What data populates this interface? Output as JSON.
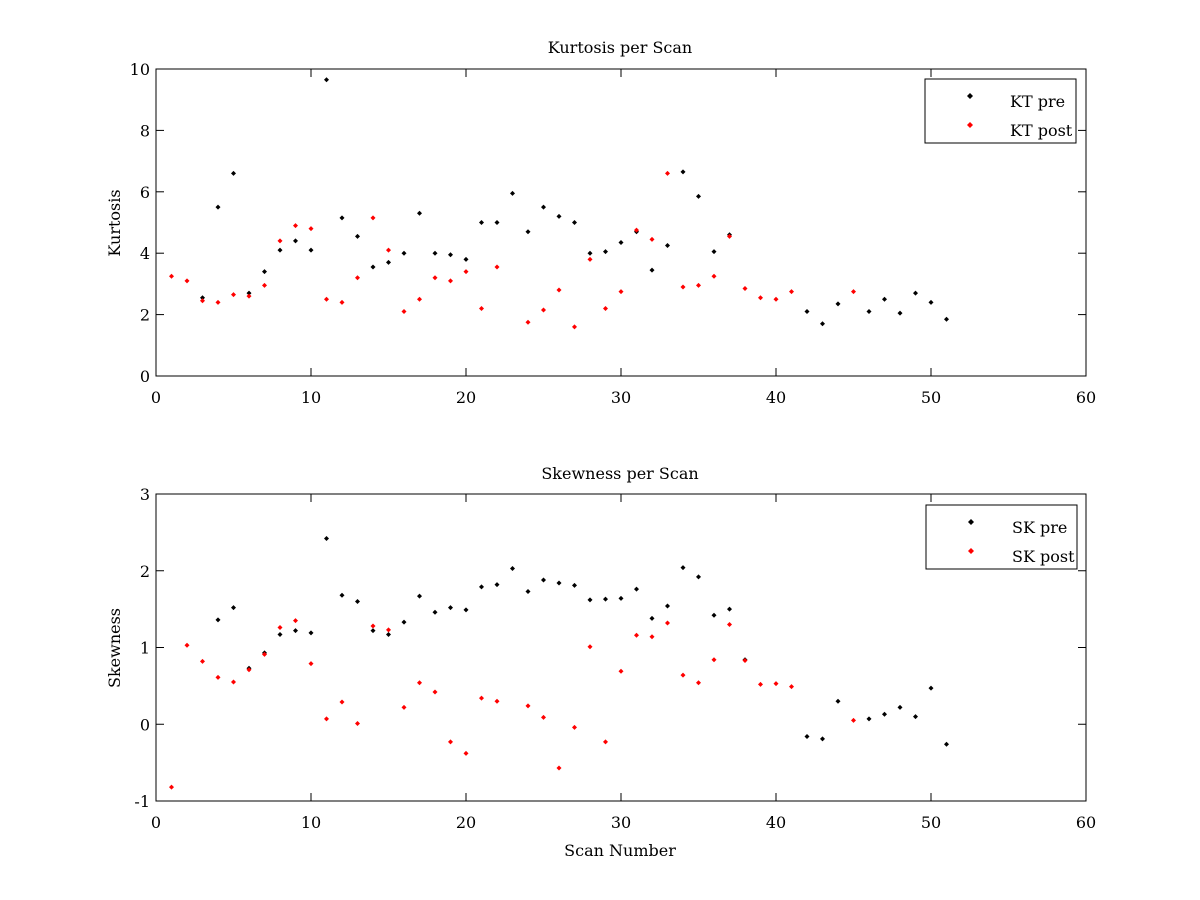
{
  "chart_data": [
    {
      "type": "scatter",
      "title": "Kurtosis per Scan",
      "xlabel": "",
      "ylabel": "Kurtosis",
      "xlim": [
        0,
        60
      ],
      "ylim": [
        0,
        10
      ],
      "xticks": [
        0,
        10,
        20,
        30,
        40,
        50,
        60
      ],
      "yticks": [
        0,
        2,
        4,
        6,
        8,
        10
      ],
      "grid": false,
      "legend_position": "top-right",
      "series": [
        {
          "name": "KT pre",
          "color": "#000000",
          "marker": "diamond",
          "points": [
            [
              3,
              2.55
            ],
            [
              4,
              5.5
            ],
            [
              5,
              6.6
            ],
            [
              6,
              2.7
            ],
            [
              7,
              3.4
            ],
            [
              8,
              4.1
            ],
            [
              9,
              4.4
            ],
            [
              10,
              4.1
            ],
            [
              11,
              9.65
            ],
            [
              12,
              5.15
            ],
            [
              13,
              4.55
            ],
            [
              14,
              3.55
            ],
            [
              15,
              3.7
            ],
            [
              16,
              4.0
            ],
            [
              17,
              5.3
            ],
            [
              18,
              4.0
            ],
            [
              19,
              3.95
            ],
            [
              20,
              3.8
            ],
            [
              21,
              5.0
            ],
            [
              22,
              5.0
            ],
            [
              23,
              5.95
            ],
            [
              24,
              4.7
            ],
            [
              25,
              5.5
            ],
            [
              26,
              5.2
            ],
            [
              27,
              5.0
            ],
            [
              28,
              4.0
            ],
            [
              29,
              4.05
            ],
            [
              30,
              4.35
            ],
            [
              31,
              4.7
            ],
            [
              32,
              3.45
            ],
            [
              33,
              4.25
            ],
            [
              34,
              6.65
            ],
            [
              35,
              5.85
            ],
            [
              36,
              4.05
            ],
            [
              37,
              4.6
            ],
            [
              42,
              2.1
            ],
            [
              43,
              1.7
            ],
            [
              44,
              2.35
            ],
            [
              46,
              2.1
            ],
            [
              47,
              2.5
            ],
            [
              48,
              2.05
            ],
            [
              49,
              2.7
            ],
            [
              50,
              2.4
            ],
            [
              51,
              1.85
            ]
          ]
        },
        {
          "name": "KT post",
          "color": "#ff0000",
          "marker": "diamond",
          "points": [
            [
              1,
              3.25
            ],
            [
              2,
              3.1
            ],
            [
              3,
              2.45
            ],
            [
              4,
              2.4
            ],
            [
              5,
              2.65
            ],
            [
              6,
              2.6
            ],
            [
              7,
              2.95
            ],
            [
              8,
              4.4
            ],
            [
              9,
              4.9
            ],
            [
              10,
              4.8
            ],
            [
              11,
              2.5
            ],
            [
              12,
              2.4
            ],
            [
              13,
              3.2
            ],
            [
              14,
              5.15
            ],
            [
              15,
              4.1
            ],
            [
              16,
              2.1
            ],
            [
              17,
              2.5
            ],
            [
              18,
              3.2
            ],
            [
              19,
              3.1
            ],
            [
              20,
              3.4
            ],
            [
              21,
              2.2
            ],
            [
              22,
              3.55
            ],
            [
              24,
              1.75
            ],
            [
              25,
              2.15
            ],
            [
              26,
              2.8
            ],
            [
              27,
              1.6
            ],
            [
              28,
              3.8
            ],
            [
              29,
              2.2
            ],
            [
              30,
              2.75
            ],
            [
              31,
              4.75
            ],
            [
              32,
              4.45
            ],
            [
              33,
              6.6
            ],
            [
              34,
              2.9
            ],
            [
              35,
              2.95
            ],
            [
              36,
              3.25
            ],
            [
              37,
              4.55
            ],
            [
              38,
              2.85
            ],
            [
              39,
              2.55
            ],
            [
              40,
              2.5
            ],
            [
              41,
              2.75
            ],
            [
              45,
              2.75
            ]
          ]
        }
      ]
    },
    {
      "type": "scatter",
      "title": "Skewness per Scan",
      "xlabel": "Scan Number",
      "ylabel": "Skewness",
      "xlim": [
        0,
        60
      ],
      "ylim": [
        -1,
        3
      ],
      "xticks": [
        0,
        10,
        20,
        30,
        40,
        50,
        60
      ],
      "yticks": [
        -1,
        0,
        1,
        2,
        3
      ],
      "grid": false,
      "legend_position": "top-right",
      "series": [
        {
          "name": "SK pre",
          "color": "#000000",
          "marker": "diamond",
          "points": [
            [
              4,
              1.36
            ],
            [
              5,
              1.52
            ],
            [
              6,
              0.73
            ],
            [
              7,
              0.93
            ],
            [
              8,
              1.17
            ],
            [
              9,
              1.22
            ],
            [
              10,
              1.19
            ],
            [
              11,
              2.42
            ],
            [
              12,
              1.68
            ],
            [
              13,
              1.6
            ],
            [
              14,
              1.22
            ],
            [
              15,
              1.17
            ],
            [
              16,
              1.33
            ],
            [
              17,
              1.67
            ],
            [
              18,
              1.46
            ],
            [
              19,
              1.52
            ],
            [
              20,
              1.49
            ],
            [
              21,
              1.79
            ],
            [
              22,
              1.82
            ],
            [
              23,
              2.03
            ],
            [
              24,
              1.73
            ],
            [
              25,
              1.88
            ],
            [
              26,
              1.84
            ],
            [
              27,
              1.81
            ],
            [
              28,
              1.62
            ],
            [
              29,
              1.63
            ],
            [
              30,
              1.64
            ],
            [
              31,
              1.76
            ],
            [
              32,
              1.38
            ],
            [
              33,
              1.54
            ],
            [
              34,
              2.04
            ],
            [
              35,
              1.92
            ],
            [
              36,
              1.42
            ],
            [
              37,
              1.5
            ],
            [
              38,
              0.84
            ],
            [
              42,
              -0.16
            ],
            [
              43,
              -0.19
            ],
            [
              44,
              0.3
            ],
            [
              46,
              0.07
            ],
            [
              47,
              0.13
            ],
            [
              48,
              0.22
            ],
            [
              49,
              0.1
            ],
            [
              50,
              0.47
            ],
            [
              51,
              -0.26
            ]
          ]
        },
        {
          "name": "SK post",
          "color": "#ff0000",
          "marker": "diamond",
          "points": [
            [
              1,
              -0.82
            ],
            [
              2,
              1.03
            ],
            [
              3,
              0.82
            ],
            [
              4,
              0.61
            ],
            [
              5,
              0.55
            ],
            [
              6,
              0.71
            ],
            [
              7,
              0.91
            ],
            [
              8,
              1.26
            ],
            [
              9,
              1.35
            ],
            [
              10,
              0.79
            ],
            [
              11,
              0.07
            ],
            [
              12,
              0.29
            ],
            [
              13,
              0.01
            ],
            [
              14,
              1.28
            ],
            [
              15,
              1.23
            ],
            [
              16,
              0.22
            ],
            [
              17,
              0.54
            ],
            [
              18,
              0.42
            ],
            [
              19,
              -0.23
            ],
            [
              20,
              -0.38
            ],
            [
              21,
              0.34
            ],
            [
              22,
              0.3
            ],
            [
              24,
              0.24
            ],
            [
              25,
              0.09
            ],
            [
              26,
              -0.57
            ],
            [
              27,
              -0.04
            ],
            [
              28,
              1.01
            ],
            [
              29,
              -0.23
            ],
            [
              30,
              0.69
            ],
            [
              31,
              1.16
            ],
            [
              32,
              1.14
            ],
            [
              33,
              1.32
            ],
            [
              34,
              0.64
            ],
            [
              35,
              0.54
            ],
            [
              36,
              0.84
            ],
            [
              37,
              1.3
            ],
            [
              38,
              0.83
            ],
            [
              39,
              0.52
            ],
            [
              40,
              0.53
            ],
            [
              41,
              0.49
            ],
            [
              45,
              0.05
            ]
          ]
        }
      ]
    }
  ]
}
